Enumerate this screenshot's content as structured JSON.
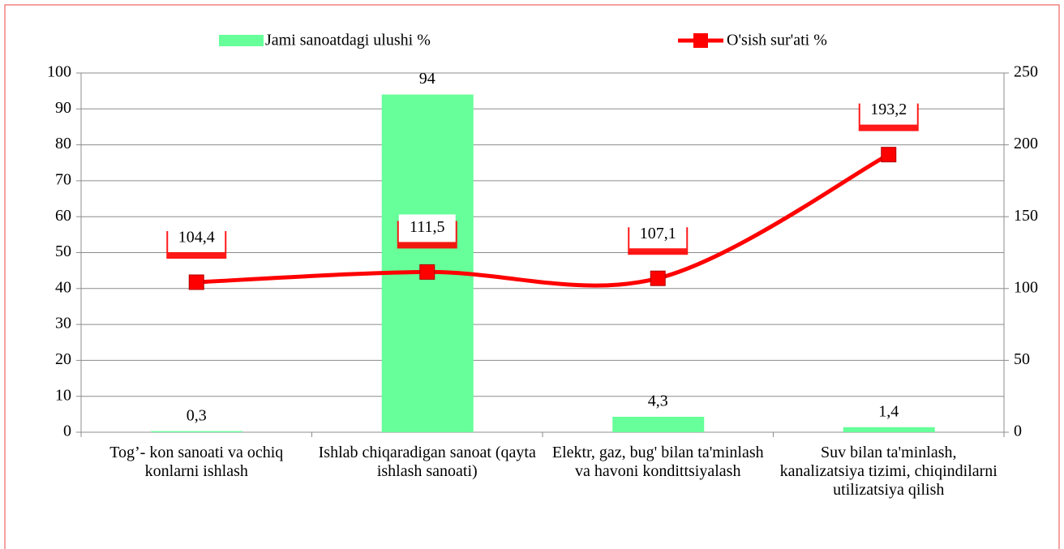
{
  "chart_data": {
    "type": "bar-line",
    "categories": [
      "Tog’- kon sanoati va ochiq konlarni ishlash",
      "Ishlab chiqaradigan sanoat (qayta ishlash sanoati)",
      "Elektr, gaz, bug'  bilan ta'minlash va havoni kondittsiyalash",
      "Suv bilan ta'minlash, kanalizatsiya tizimi, chiqindilarni utilizatsiya qilish"
    ],
    "series": [
      {
        "name": "Jami sanoatdagi ulushi %",
        "type": "bar",
        "color": "#66ff99",
        "values": [
          0.3,
          94,
          4.3,
          1.4
        ],
        "value_labels": [
          "0,3",
          "94",
          "4,3",
          "1,4"
        ]
      },
      {
        "name": "O'sish sur'ati %",
        "type": "line",
        "axis": "y2",
        "color": "#ff0000",
        "values": [
          104.4,
          111.5,
          107.1,
          193.2
        ],
        "value_labels": [
          "104,4",
          "111,5",
          "107,1",
          "193,2"
        ]
      }
    ],
    "ylim": [
      0,
      100
    ],
    "yticks": [
      0,
      10,
      20,
      30,
      40,
      50,
      60,
      70,
      80,
      90,
      100
    ],
    "y2lim": [
      0,
      250
    ],
    "y2ticks": [
      0,
      50,
      100,
      150,
      200,
      250
    ],
    "grid": true,
    "legend": "top"
  }
}
